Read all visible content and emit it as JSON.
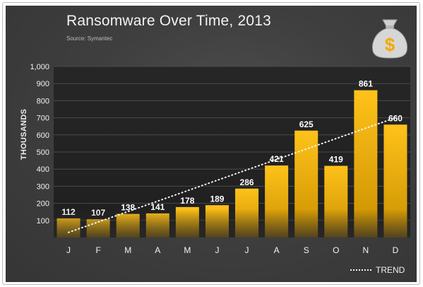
{
  "chart_data": {
    "type": "bar",
    "title": "Ransomware Over Time, 2013",
    "source": "Source: Symantec",
    "ylabel": "THOUSANDS",
    "xlabel": "",
    "categories": [
      "J",
      "F",
      "M",
      "A",
      "M",
      "J",
      "J",
      "A",
      "S",
      "O",
      "N",
      "D"
    ],
    "values": [
      112,
      107,
      138,
      141,
      178,
      189,
      286,
      421,
      625,
      419,
      861,
      660
    ],
    "value_labels": [
      "112",
      "107",
      "138",
      "141",
      "178",
      "189",
      "286",
      "421",
      "625",
      "419",
      "861",
      "660"
    ],
    "yticks": [
      100,
      200,
      300,
      400,
      500,
      600,
      700,
      800,
      900,
      1000
    ],
    "ytick_labels": [
      "100",
      "200",
      "300",
      "400",
      "500",
      "600",
      "700",
      "800",
      "900",
      "1,000"
    ],
    "ylim": [
      0,
      1000
    ],
    "trend": {
      "name": "TREND",
      "start": 30,
      "end": 700
    },
    "legend": {
      "position": "bottom-right",
      "entries": [
        "TREND"
      ]
    },
    "grid": true
  },
  "colors": {
    "bar_top": "#ffc21a",
    "bar_bottom": "#c99000",
    "grid": "#4a4a4a",
    "text": "#f2f2f2",
    "trend": "#f5f5f5"
  },
  "icon": {
    "name": "money-bag-icon",
    "symbol": "$"
  }
}
